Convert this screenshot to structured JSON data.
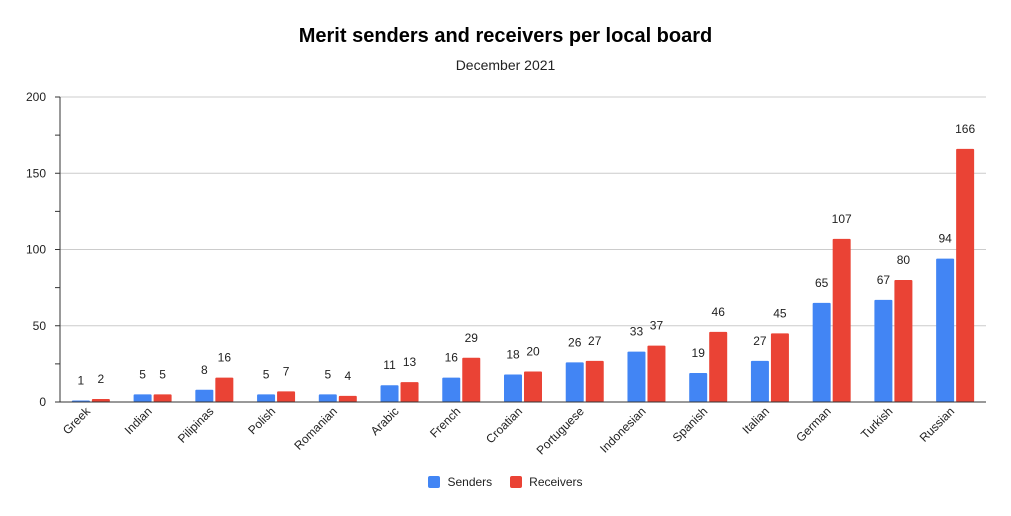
{
  "chart_data": {
    "type": "bar",
    "title": "Merit senders and receivers per local board",
    "subtitle": "December 2021",
    "categories": [
      "Greek",
      "Indian",
      "Pilipinas",
      "Polish",
      "Romanian",
      "Arabic",
      "French",
      "Croatian",
      "Portuguese",
      "Indonesian",
      "Spanish",
      "Italian",
      "German",
      "Turkish",
      "Russian"
    ],
    "series": [
      {
        "name": "Senders",
        "color": "#4285f4",
        "values": [
          1,
          5,
          8,
          5,
          5,
          11,
          16,
          18,
          26,
          33,
          19,
          27,
          65,
          67,
          94
        ]
      },
      {
        "name": "Receivers",
        "color": "#ea4335",
        "values": [
          2,
          5,
          16,
          7,
          4,
          13,
          29,
          20,
          27,
          37,
          46,
          45,
          107,
          80,
          166
        ]
      }
    ],
    "ylim": [
      0,
      200
    ],
    "yticks": [
      0,
      50,
      100,
      150,
      200
    ],
    "grid": true,
    "legend": "bottom",
    "data_labels": true
  }
}
